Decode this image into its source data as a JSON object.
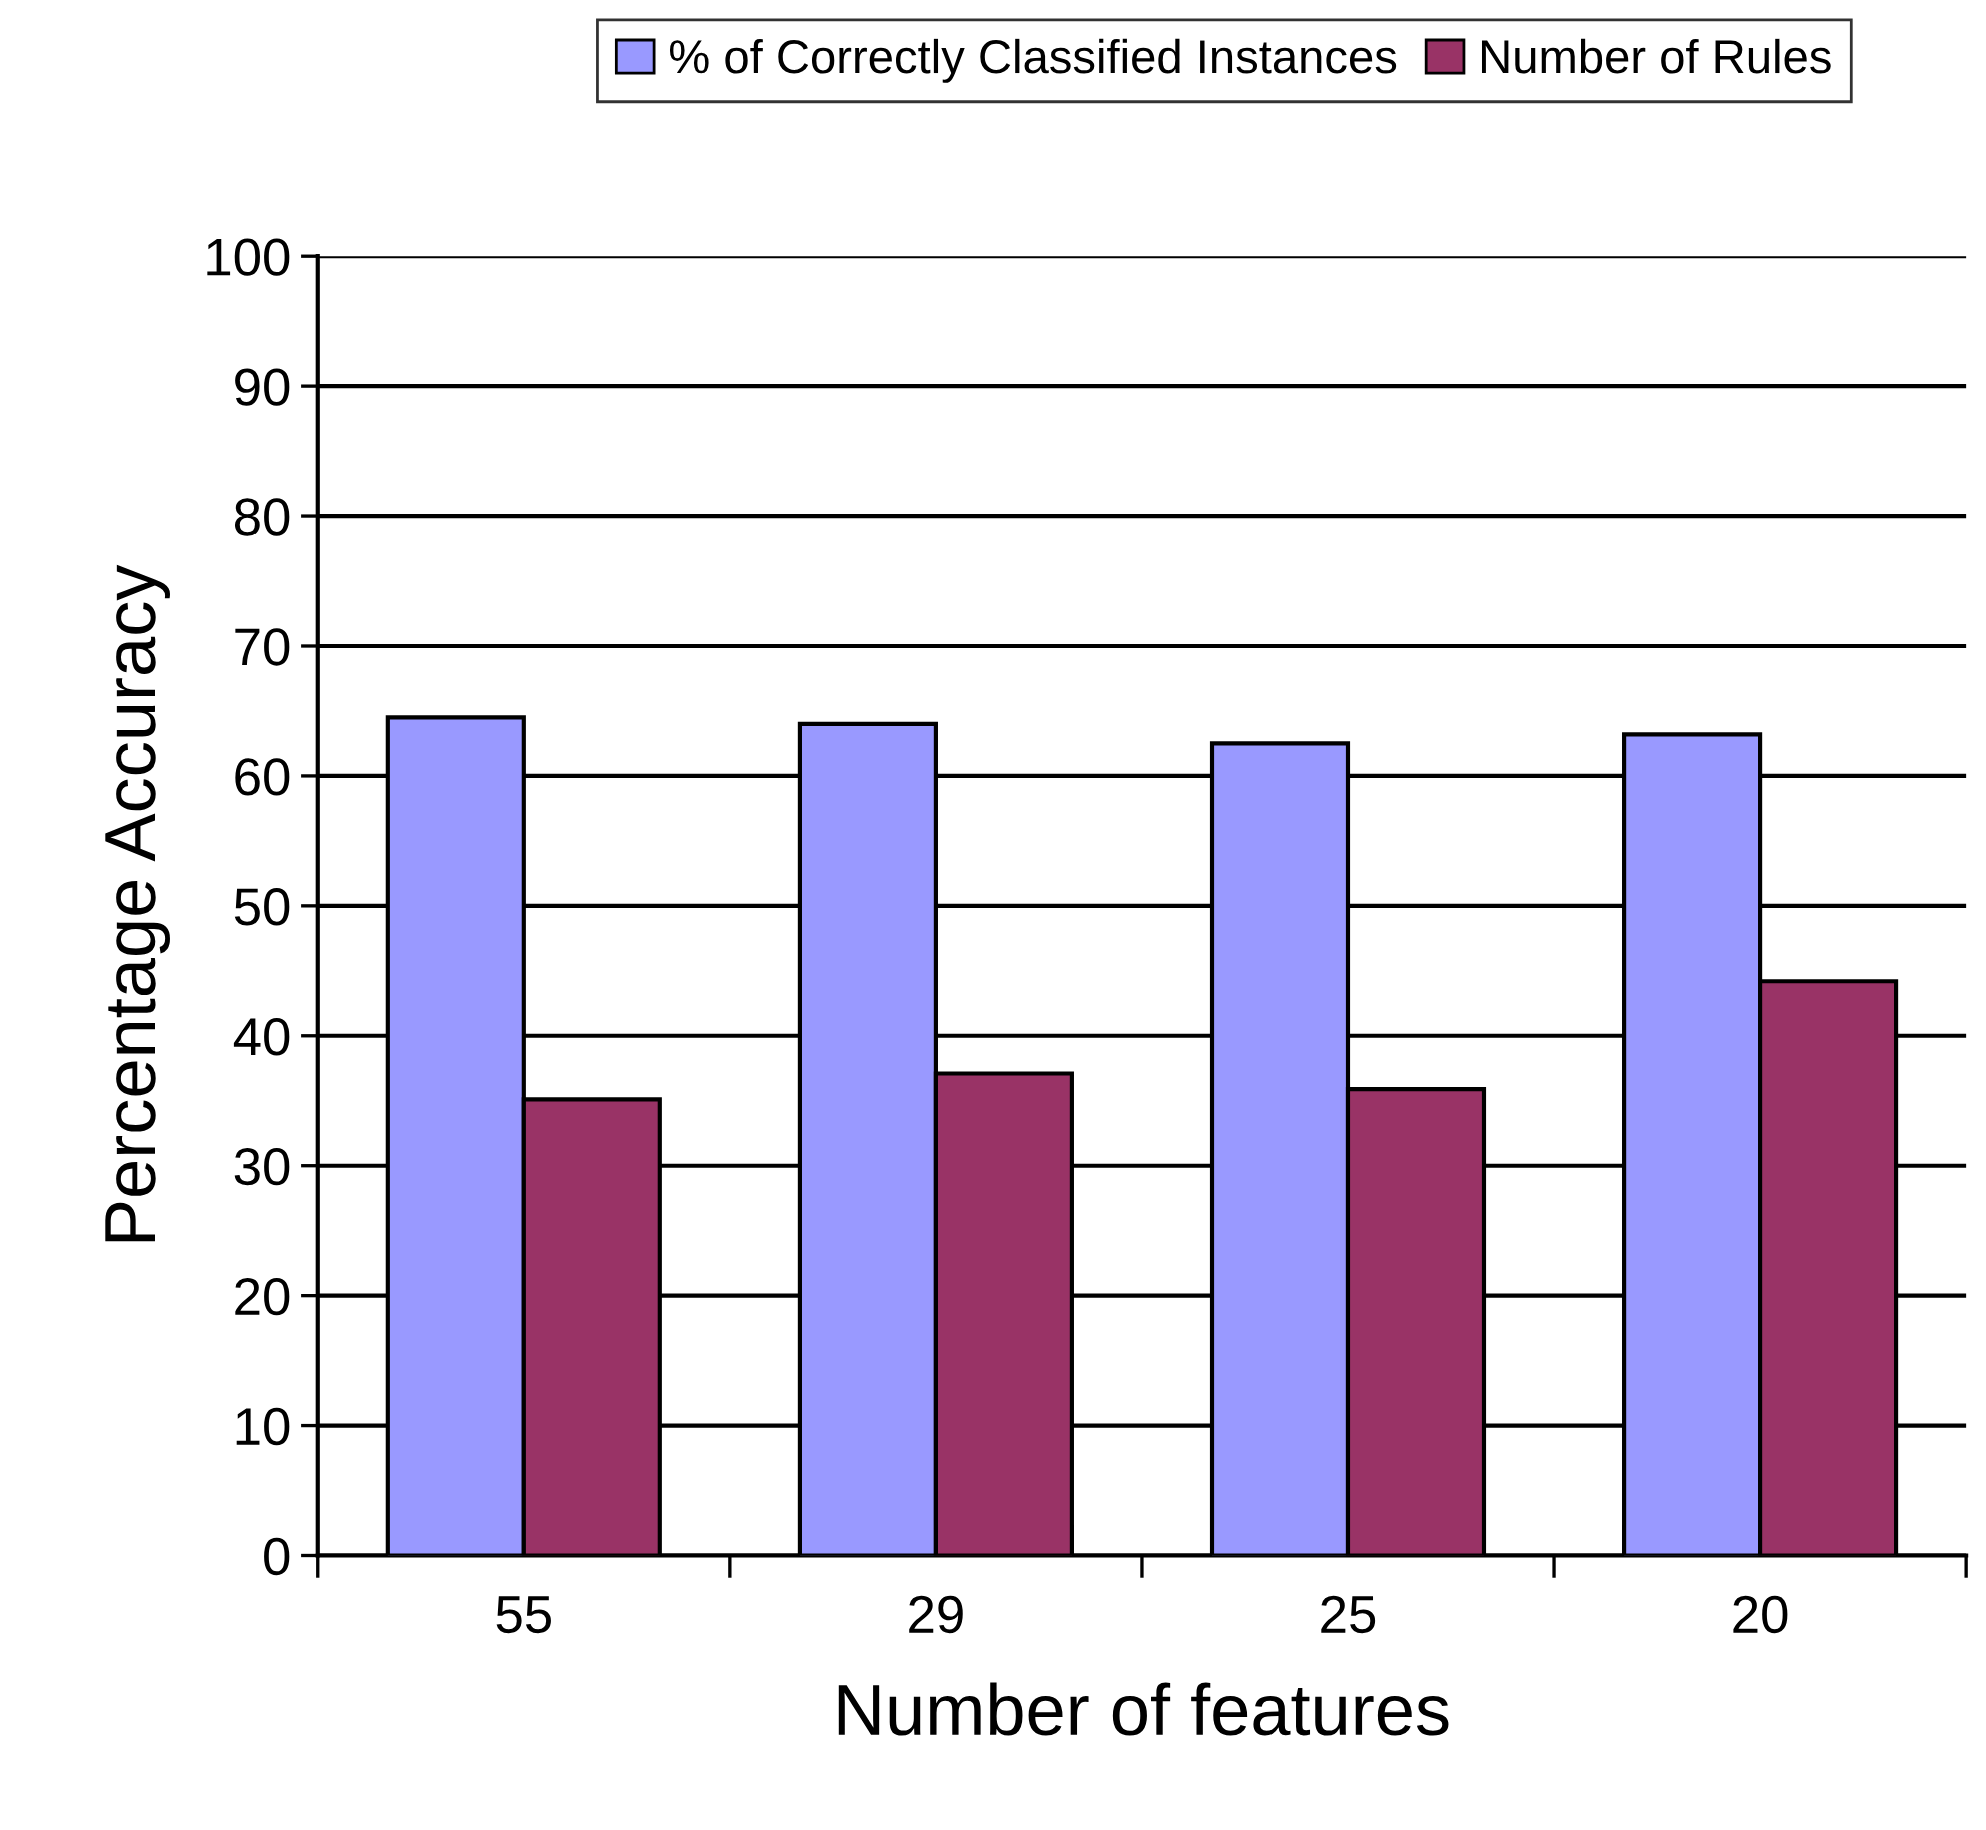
{
  "chart_data": {
    "type": "bar",
    "xlabel": "Number of features",
    "ylabel": "Percentage Accuracy",
    "categories": [
      "55",
      "29",
      "25",
      "20"
    ],
    "series": [
      {
        "name": "% of Correctly Classified Instances",
        "color": "#9999ff",
        "values": [
          64.5,
          64.0,
          62.5,
          63.2
        ]
      },
      {
        "name": "Number of Rules",
        "color": "#993366",
        "values": [
          35.1,
          37.1,
          35.9,
          44.2
        ]
      }
    ],
    "ylim": [
      0,
      100
    ],
    "yticks": [
      0,
      10,
      20,
      30,
      40,
      50,
      60,
      70,
      80,
      90,
      100
    ],
    "grid": "y",
    "legend": "top"
  }
}
